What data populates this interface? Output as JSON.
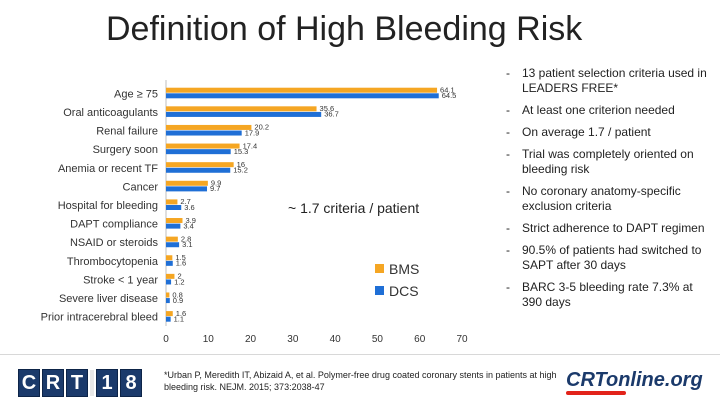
{
  "slide": {
    "title": "Definition of High Bleeding Risk",
    "annotation": "~ 1.7 criteria / patient",
    "footnote": "*Urban P, Meredith IT, Abizaid A, et al. Polymer-free drug coated coronary stents in patients at high bleeding risk. NEJM. 2015; 373:2038-47",
    "logo_left": [
      "C",
      "R",
      "T",
      "1",
      "8"
    ],
    "logo_right": "CRTonline.org"
  },
  "bullets": [
    "13 patient selection criteria used in LEADERS FREE*",
    "At least one criterion needed",
    "On average 1.7 / patient",
    "Trial was completely oriented on bleeding risk",
    "No coronary anatomy-specific exclusion criteria",
    "Strict adherence to DAPT regimen",
    "90.5% of patients had switched to SAPT after 30 days",
    "BARC 3-5 bleeding rate 7.3% at 390 days"
  ],
  "bullet_marker": "-",
  "chart_data": {
    "type": "bar",
    "orientation": "horizontal",
    "categories": [
      "Age ≥ 75",
      "Oral anticoagulants",
      "Renal failure",
      "Surgery soon",
      "Anemia or recent TF",
      "Cancer",
      "Hospital for bleeding",
      "DAPT compliance",
      "NSAID or steroids",
      "Thrombocytopenia",
      "Stroke < 1 year",
      "Severe liver disease",
      "Prior intracerebral bleed"
    ],
    "series": [
      {
        "name": "BMS",
        "color": "#f5a623",
        "values": [
          64.1,
          35.6,
          20.2,
          17.4,
          16,
          9.9,
          2.7,
          3.9,
          2.8,
          1.5,
          2,
          0.8,
          1.6
        ]
      },
      {
        "name": "DCS",
        "color": "#1f6fd6",
        "values": [
          64.5,
          36.7,
          17.9,
          15.3,
          15.2,
          9.7,
          3.6,
          3.4,
          3.1,
          1.6,
          1.2,
          0.9,
          1.1
        ]
      }
    ],
    "value_labels": [
      [
        "64.1",
        "64.5"
      ],
      [
        "35.6",
        "36.7"
      ],
      [
        "20.2",
        "17.9"
      ],
      [
        "17.4",
        "15.3"
      ],
      [
        "16",
        "15.2"
      ],
      [
        "9.9",
        "9.7"
      ],
      [
        "2.7",
        "3.6"
      ],
      [
        "3.9",
        "3.4"
      ],
      [
        "2.8",
        "3.1"
      ],
      [
        "1.5",
        "1.6"
      ],
      [
        "2",
        "1.2"
      ],
      [
        "0.8",
        "0.9"
      ],
      [
        "1.6",
        "1.1"
      ]
    ],
    "xticks": [
      "0",
      "10",
      "20",
      "30",
      "40",
      "50",
      "60",
      "70"
    ],
    "xlim": [
      0,
      70
    ],
    "legend": "bottom-right",
    "grid": false
  }
}
